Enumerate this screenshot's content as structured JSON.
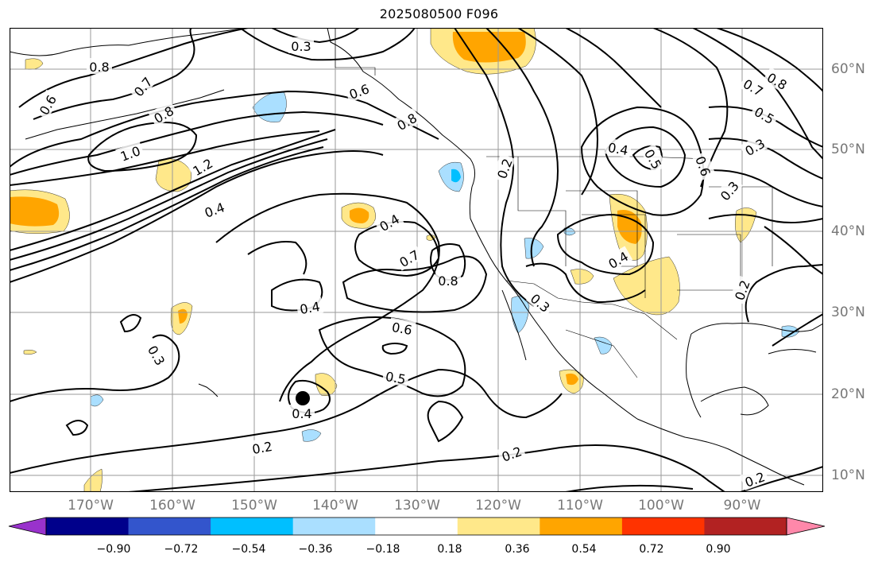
{
  "title": "2025080500 F096",
  "colors": {
    "frame": "#000000",
    "grid": "#9a9a9a",
    "contour": "#000000",
    "coast": "#000000",
    "colorbar": [
      "#9932cc",
      "#00008b",
      "#3355cc",
      "#00bfff",
      "#aadfff",
      "#ffffff",
      "#ffe88a",
      "#ffa500",
      "#ff3300",
      "#b22222",
      "#ff88aa"
    ]
  },
  "axes": {
    "lon_labels": [
      "170°W",
      "160°W",
      "150°W",
      "140°W",
      "130°W",
      "120°W",
      "110°W",
      "100°W",
      "90°W"
    ],
    "lat_labels": [
      "60°N",
      "50°N",
      "40°N",
      "30°N",
      "20°N",
      "10°N"
    ]
  },
  "colorbar": {
    "tick_labels": [
      "−0.90",
      "−0.72",
      "−0.54",
      "−0.36",
      "−0.18",
      "0.18",
      "0.36",
      "0.54",
      "0.72",
      "0.90"
    ]
  },
  "contour_labels": [
    "0.3",
    "0.8",
    "0.6",
    "0.7",
    "0.8",
    "1.0",
    "1.2",
    "0.4",
    "0.6",
    "0.8",
    "0.4",
    "0.7",
    "0.8",
    "0.4",
    "0.6",
    "0.5",
    "0.3",
    "0.4",
    "0.2",
    "0.2",
    "0.2",
    "0.4",
    "0.5",
    "0.6",
    "0.3",
    "0.8",
    "0.7",
    "0.5",
    "0.3",
    "0.2",
    "0.4",
    "0.3",
    "0.2"
  ],
  "marker": {
    "label": "storm-center",
    "lon": -143.5,
    "lat": 19.5
  }
}
